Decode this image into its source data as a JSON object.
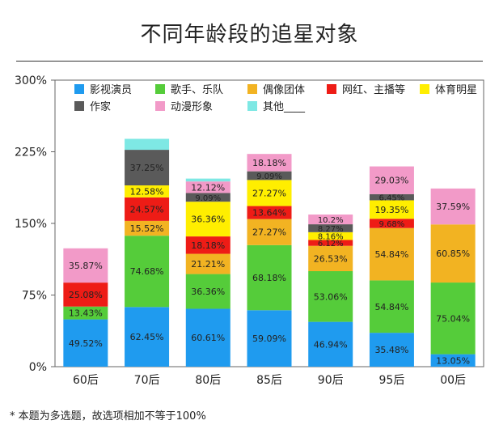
{
  "title": "不同年龄段的追星对象",
  "footnote": "* 本题为多选题，故选项相加不等于100%",
  "colors": {
    "影视演员": "#1f9bef",
    "歌手、乐队": "#55cc3a",
    "偶像团体": "#f2b322",
    "网红、主播等": "#ee1c16",
    "体育明星": "#ffee00",
    "作家": "#5a5a5a",
    "动漫形象": "#f29ac8",
    "其他____": "#7ee8e4"
  },
  "chart_data": {
    "type": "bar",
    "stacked": true,
    "title": "不同年龄段的追星对象",
    "categories": [
      "60后",
      "70后",
      "80后",
      "85后",
      "90后",
      "95后",
      "00后"
    ],
    "y_ticks": [
      "0%",
      "75%",
      "150%",
      "225%",
      "300%"
    ],
    "ylim": [
      0,
      300
    ],
    "legend_position": "top",
    "series": [
      {
        "name": "影视演员",
        "values": [
          49.52,
          62.45,
          60.61,
          59.09,
          46.94,
          35.48,
          13.05
        ],
        "labels": [
          "49.52%",
          "62.45%",
          "60.61%",
          "59.09%",
          "46.94%",
          "35.48%",
          "13.05%"
        ]
      },
      {
        "name": "歌手、乐队",
        "values": [
          13.43,
          74.68,
          36.36,
          68.18,
          53.06,
          54.84,
          75.04
        ],
        "labels": [
          "13.43%",
          "74.68%",
          "36.36%",
          "68.18%",
          "53.06%",
          "54.84%",
          "75.04%"
        ]
      },
      {
        "name": "偶像团体",
        "values": [
          0,
          15.52,
          21.21,
          27.27,
          26.53,
          54.84,
          60.85
        ],
        "labels": [
          "",
          "15.52%",
          "21.21%",
          "27.27%",
          "26.53%",
          "54.84%",
          "60.85%"
        ]
      },
      {
        "name": "网红、主播等",
        "values": [
          25.08,
          24.57,
          18.18,
          13.64,
          6.12,
          9.68,
          0
        ],
        "labels": [
          "25.08%",
          "24.57%",
          "18.18%",
          "13.64%",
          "6.12%",
          "9.68%",
          ""
        ]
      },
      {
        "name": "体育明星",
        "values": [
          0,
          12.58,
          36.36,
          27.27,
          8.16,
          19.35,
          0
        ],
        "labels": [
          "",
          "12.58%",
          "36.36%",
          "27.27%",
          "8.16%",
          "19.35%",
          ""
        ]
      },
      {
        "name": "作家",
        "values": [
          0,
          37.25,
          9.09,
          9.09,
          8.27,
          6.45,
          0
        ],
        "labels": [
          "",
          "37.25%",
          "9.09%",
          "9.09%",
          "8.27%",
          "6.45%",
          ""
        ]
      },
      {
        "name": "动漫形象",
        "values": [
          35.87,
          0,
          12.12,
          18.18,
          10.2,
          29.03,
          37.59
        ],
        "labels": [
          "35.87%",
          "",
          "12.12%",
          "18.18%",
          "10.2%",
          "29.03%",
          "37.59%"
        ]
      },
      {
        "name": "其他____",
        "values": [
          0,
          11.5,
          3,
          0,
          0,
          0,
          0
        ],
        "labels": [
          "",
          "",
          "",
          "",
          "",
          "",
          ""
        ]
      }
    ]
  }
}
